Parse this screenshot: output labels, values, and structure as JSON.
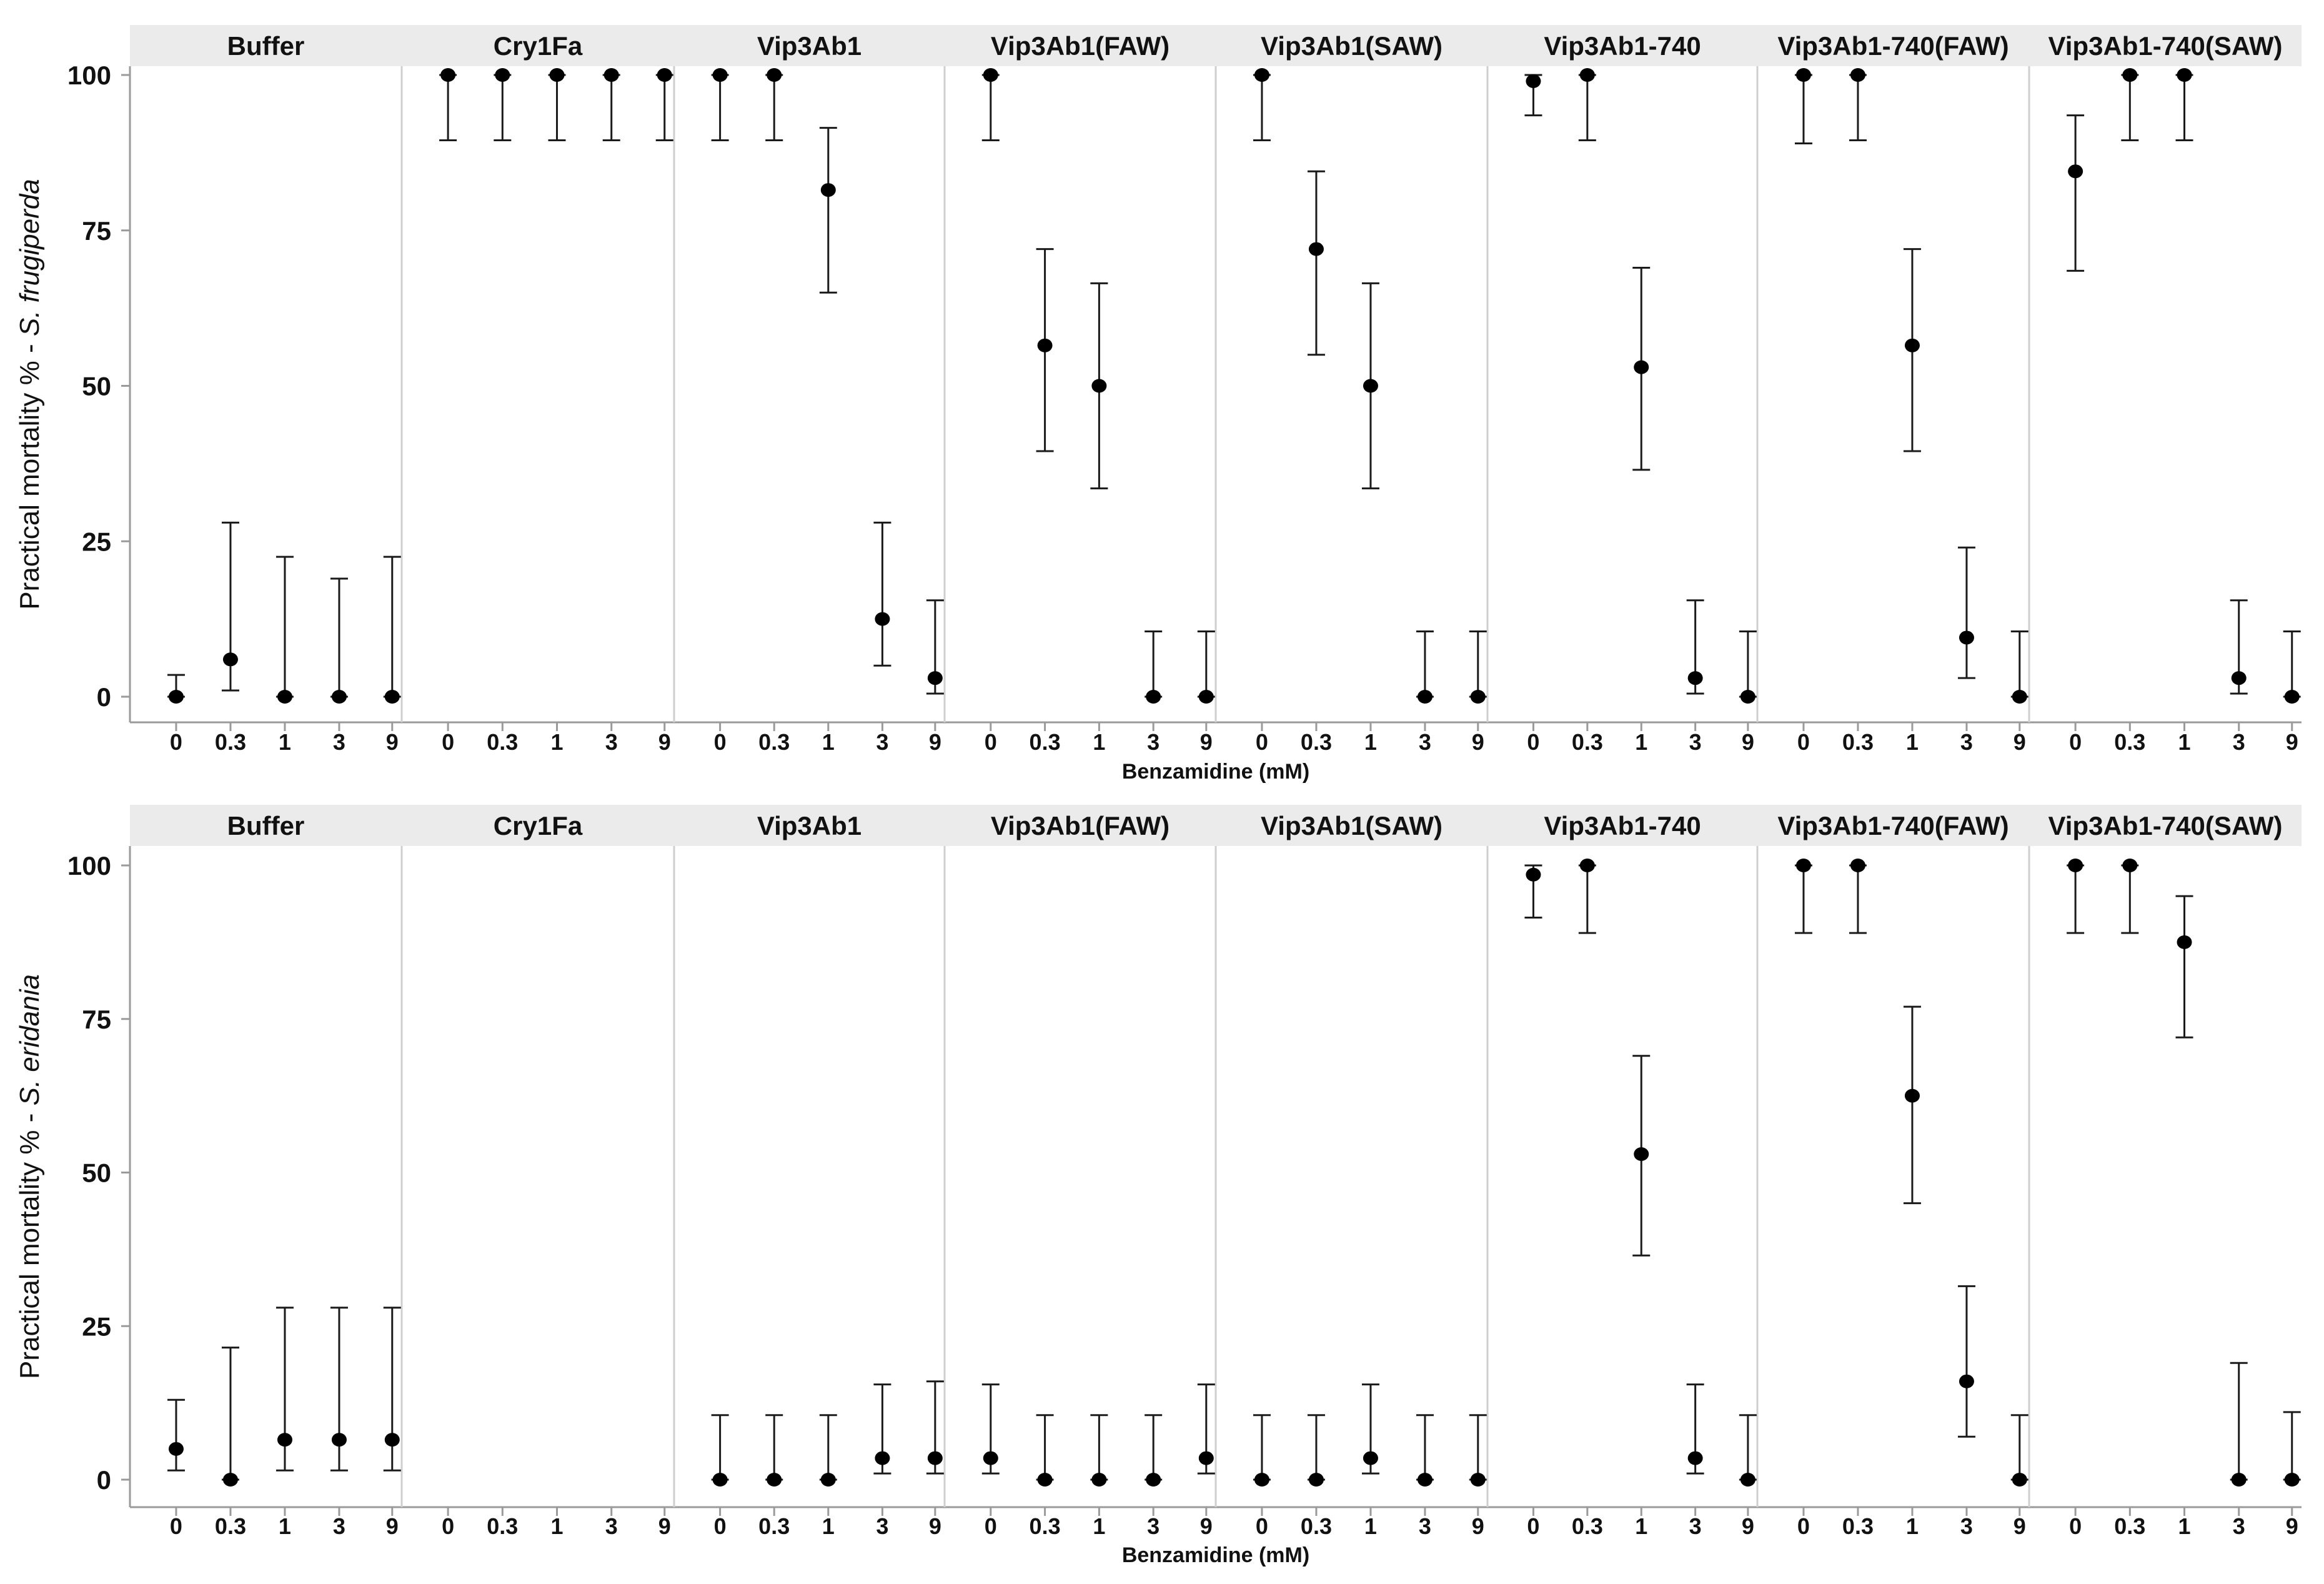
{
  "chart_data": [
    {
      "type": "scatter",
      "subtype": "faceted dot plot with error bars",
      "ylabel_prefix": "Practical mortality % - ",
      "species": "S. frugiperda",
      "xlabel": "Benzamidine (mM)",
      "x_categories": [
        "0",
        "0.3",
        "1",
        "3",
        "9"
      ],
      "y_ticks": [
        "0",
        "25",
        "50",
        "75",
        "100"
      ],
      "ylim": [
        -5,
        102
      ],
      "panels": [
        {
          "label": "Buffer",
          "points": [
            {
              "x": "0",
              "y": 0,
              "lo": 0,
              "hi": 3.5
            },
            {
              "x": "0.3",
              "y": 6,
              "lo": 1,
              "hi": 28
            },
            {
              "x": "1",
              "y": 0,
              "lo": 0,
              "hi": 22.5
            },
            {
              "x": "3",
              "y": 0,
              "lo": 0,
              "hi": 19
            },
            {
              "x": "9",
              "y": 0,
              "lo": 0,
              "hi": 22.5
            }
          ]
        },
        {
          "label": "Cry1Fa",
          "points": [
            {
              "x": "0",
              "y": 100,
              "lo": 89.5,
              "hi": 100
            },
            {
              "x": "0.3",
              "y": 100,
              "lo": 89.5,
              "hi": 100
            },
            {
              "x": "1",
              "y": 100,
              "lo": 89.5,
              "hi": 100
            },
            {
              "x": "3",
              "y": 100,
              "lo": 89.5,
              "hi": 100
            },
            {
              "x": "9",
              "y": 100,
              "lo": 89.5,
              "hi": 100
            }
          ]
        },
        {
          "label": "Vip3Ab1",
          "points": [
            {
              "x": "0",
              "y": 100,
              "lo": 89.5,
              "hi": 100
            },
            {
              "x": "0.3",
              "y": 100,
              "lo": 89.5,
              "hi": 100
            },
            {
              "x": "1",
              "y": 81.5,
              "lo": 65,
              "hi": 91.5
            },
            {
              "x": "3",
              "y": 12.5,
              "lo": 5,
              "hi": 28
            },
            {
              "x": "9",
              "y": 3,
              "lo": 0.5,
              "hi": 15.5
            }
          ]
        },
        {
          "label": "Vip3Ab1(FAW)",
          "points": [
            {
              "x": "0",
              "y": 100,
              "lo": 89.5,
              "hi": 100
            },
            {
              "x": "0.3",
              "y": 56.5,
              "lo": 39.5,
              "hi": 72
            },
            {
              "x": "1",
              "y": 50,
              "lo": 33.5,
              "hi": 66.5
            },
            {
              "x": "3",
              "y": 0,
              "lo": 0,
              "hi": 10.5
            },
            {
              "x": "9",
              "y": 0,
              "lo": 0,
              "hi": 10.5
            }
          ]
        },
        {
          "label": "Vip3Ab1(SAW)",
          "points": [
            {
              "x": "0",
              "y": 100,
              "lo": 89.5,
              "hi": 100
            },
            {
              "x": "0.3",
              "y": 72,
              "lo": 55,
              "hi": 84.5
            },
            {
              "x": "1",
              "y": 50,
              "lo": 33.5,
              "hi": 66.5
            },
            {
              "x": "3",
              "y": 0,
              "lo": 0,
              "hi": 10.5
            },
            {
              "x": "9",
              "y": 0,
              "lo": 0,
              "hi": 10.5
            }
          ]
        },
        {
          "label": "Vip3Ab1-740",
          "points": [
            {
              "x": "0",
              "y": 99,
              "lo": 93.5,
              "hi": 100
            },
            {
              "x": "0.3",
              "y": 100,
              "lo": 89.5,
              "hi": 100
            },
            {
              "x": "1",
              "y": 53,
              "lo": 36.5,
              "hi": 69
            },
            {
              "x": "3",
              "y": 3,
              "lo": 0.5,
              "hi": 15.5
            },
            {
              "x": "9",
              "y": 0,
              "lo": 0,
              "hi": 10.5
            }
          ]
        },
        {
          "label": "Vip3Ab1-740(FAW)",
          "points": [
            {
              "x": "0",
              "y": 100,
              "lo": 89,
              "hi": 100
            },
            {
              "x": "0.3",
              "y": 100,
              "lo": 89.5,
              "hi": 100
            },
            {
              "x": "1",
              "y": 56.5,
              "lo": 39.5,
              "hi": 72
            },
            {
              "x": "3",
              "y": 9.5,
              "lo": 3,
              "hi": 24
            },
            {
              "x": "9",
              "y": 0,
              "lo": 0,
              "hi": 10.5
            }
          ]
        },
        {
          "label": "Vip3Ab1-740(SAW)",
          "points": [
            {
              "x": "0",
              "y": 84.5,
              "lo": 68.5,
              "hi": 93.5
            },
            {
              "x": "0.3",
              "y": 100,
              "lo": 89.5,
              "hi": 100
            },
            {
              "x": "1",
              "y": 100,
              "lo": 89.5,
              "hi": 100
            },
            {
              "x": "3",
              "y": 3,
              "lo": 0.5,
              "hi": 15.5
            },
            {
              "x": "9",
              "y": 0,
              "lo": 0,
              "hi": 10.5
            }
          ]
        }
      ]
    },
    {
      "type": "scatter",
      "subtype": "faceted dot plot with error bars",
      "ylabel_prefix": "Practical mortality % - ",
      "species": "S. eridania",
      "xlabel": "Benzamidine (mM)",
      "x_categories": [
        "0",
        "0.3",
        "1",
        "3",
        "9"
      ],
      "y_ticks": [
        "0",
        "25",
        "50",
        "75",
        "100"
      ],
      "ylim": [
        -5,
        102
      ],
      "panels": [
        {
          "label": "Buffer",
          "points": [
            {
              "x": "0",
              "y": 5,
              "lo": 1.5,
              "hi": 13
            },
            {
              "x": "0.3",
              "y": 0,
              "lo": 0,
              "hi": 21.5
            },
            {
              "x": "1",
              "y": 6.5,
              "lo": 1.5,
              "hi": 28
            },
            {
              "x": "3",
              "y": 6.5,
              "lo": 1.5,
              "hi": 28
            },
            {
              "x": "9",
              "y": 6.5,
              "lo": 1.5,
              "hi": 28
            }
          ]
        },
        {
          "label": "Cry1Fa",
          "points": []
        },
        {
          "label": "Vip3Ab1",
          "points": [
            {
              "x": "0",
              "y": 0,
              "lo": 0,
              "hi": 10.5
            },
            {
              "x": "0.3",
              "y": 0,
              "lo": 0,
              "hi": 10.5
            },
            {
              "x": "1",
              "y": 0,
              "lo": 0,
              "hi": 10.5
            },
            {
              "x": "3",
              "y": 3.5,
              "lo": 1,
              "hi": 15.5
            },
            {
              "x": "9",
              "y": 3.5,
              "lo": 1,
              "hi": 16
            }
          ]
        },
        {
          "label": "Vip3Ab1(FAW)",
          "points": [
            {
              "x": "0",
              "y": 3.5,
              "lo": 1,
              "hi": 15.5
            },
            {
              "x": "0.3",
              "y": 0,
              "lo": 0,
              "hi": 10.5
            },
            {
              "x": "1",
              "y": 0,
              "lo": 0,
              "hi": 10.5
            },
            {
              "x": "3",
              "y": 0,
              "lo": 0,
              "hi": 10.5
            },
            {
              "x": "9",
              "y": 3.5,
              "lo": 1,
              "hi": 15.5
            }
          ]
        },
        {
          "label": "Vip3Ab1(SAW)",
          "points": [
            {
              "x": "0",
              "y": 0,
              "lo": 0,
              "hi": 10.5
            },
            {
              "x": "0.3",
              "y": 0,
              "lo": 0,
              "hi": 10.5
            },
            {
              "x": "1",
              "y": 3.5,
              "lo": 1,
              "hi": 15.5
            },
            {
              "x": "3",
              "y": 0,
              "lo": 0,
              "hi": 10.5
            },
            {
              "x": "9",
              "y": 0,
              "lo": 0,
              "hi": 10.5
            }
          ]
        },
        {
          "label": "Vip3Ab1-740",
          "points": [
            {
              "x": "0",
              "y": 98.5,
              "lo": 91.5,
              "hi": 100
            },
            {
              "x": "0.3",
              "y": 100,
              "lo": 89,
              "hi": 100
            },
            {
              "x": "1",
              "y": 53,
              "lo": 36.5,
              "hi": 69
            },
            {
              "x": "3",
              "y": 3.5,
              "lo": 1,
              "hi": 15.5
            },
            {
              "x": "9",
              "y": 0,
              "lo": 0,
              "hi": 10.5
            }
          ]
        },
        {
          "label": "Vip3Ab1-740(FAW)",
          "points": [
            {
              "x": "0",
              "y": 100,
              "lo": 89,
              "hi": 100
            },
            {
              "x": "0.3",
              "y": 100,
              "lo": 89,
              "hi": 100
            },
            {
              "x": "1",
              "y": 62.5,
              "lo": 45,
              "hi": 77
            },
            {
              "x": "3",
              "y": 16,
              "lo": 7,
              "hi": 31.5
            },
            {
              "x": "9",
              "y": 0,
              "lo": 0,
              "hi": 10.5
            }
          ]
        },
        {
          "label": "Vip3Ab1-740(SAW)",
          "points": [
            {
              "x": "0",
              "y": 100,
              "lo": 89,
              "hi": 100
            },
            {
              "x": "0.3",
              "y": 100,
              "lo": 89,
              "hi": 100
            },
            {
              "x": "1",
              "y": 87.5,
              "lo": 72,
              "hi": 95
            },
            {
              "x": "3",
              "y": 0,
              "lo": 0,
              "hi": 19
            },
            {
              "x": "9",
              "y": 0,
              "lo": 0,
              "hi": 11
            }
          ]
        }
      ]
    }
  ]
}
